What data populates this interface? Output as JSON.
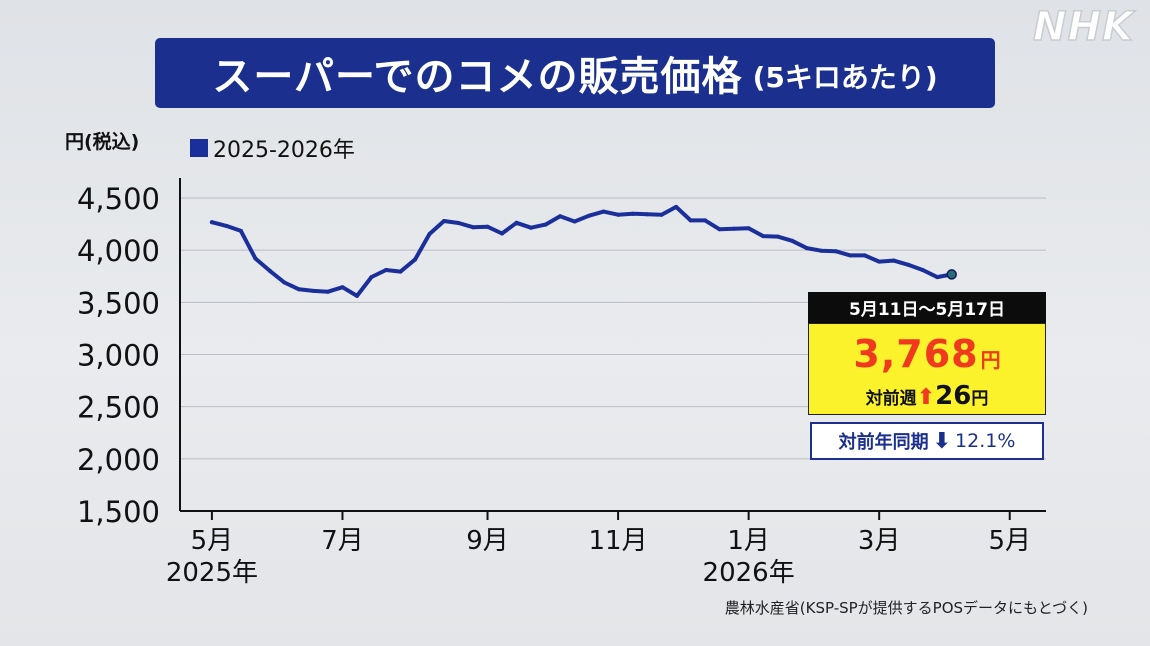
{
  "logo": "NHK",
  "title": {
    "main": "スーパーでのコメの販売価格",
    "sub": "(5キロあたり)"
  },
  "chart_data": {
    "type": "line",
    "yunit": "円(税込)",
    "legend": {
      "label": "2025-2026年",
      "position": "top-left"
    },
    "ylim": [
      1500,
      4500
    ],
    "yticks": [
      1500,
      2000,
      2500,
      3000,
      3500,
      4000,
      4500
    ],
    "ytick_labels": [
      "1,500",
      "2,000",
      "2,500",
      "3,000",
      "3,500",
      "4,000",
      "4,500"
    ],
    "grid": true,
    "x_ticks": [
      {
        "label": "5月",
        "sub": "2025年",
        "week": 0
      },
      {
        "label": "7月",
        "sub": "",
        "week": 9
      },
      {
        "label": "9月",
        "sub": "",
        "week": 19
      },
      {
        "label": "11月",
        "sub": "",
        "week": 28
      },
      {
        "label": "1月",
        "sub": "2026年",
        "week": 37
      },
      {
        "label": "3月",
        "sub": "",
        "week": 46
      },
      {
        "label": "5月",
        "sub": "",
        "week": 55
      }
    ],
    "xlim": [
      -2.2,
      57.5
    ],
    "series": [
      {
        "name": "2025-2026年",
        "color": "#1b2f9a",
        "values": [
          4268,
          4233,
          4185,
          3920,
          3801,
          3690,
          3625,
          3610,
          3602,
          3645,
          3562,
          3743,
          3810,
          3795,
          3910,
          4155,
          4280,
          4260,
          4220,
          4225,
          4160,
          4262,
          4215,
          4245,
          4325,
          4275,
          4330,
          4370,
          4340,
          4350,
          4345,
          4340,
          4415,
          4285,
          4285,
          4200,
          4205,
          4210,
          4135,
          4130,
          4090,
          4020,
          3995,
          3990,
          3950,
          3950,
          3890,
          3900,
          3860,
          3810,
          3742,
          3768
        ]
      }
    ]
  },
  "info_box": {
    "period": "5月11日～5月17日",
    "price": "3,768",
    "price_unit": "円",
    "week_label": "対前週",
    "week_arrow": "up-arrow",
    "week_change": "26",
    "week_unit": "円",
    "yoy_label": "対前年同期",
    "yoy_arrow": "down-arrow",
    "yoy_change": "12.1%"
  },
  "source": "農林水産省(KSP-SPが提供するPOSデータにもとづく)",
  "colors": {
    "title_bg": "#1b2f8f",
    "line": "#1b2f9a",
    "highlight_yellow": "#fbf22b",
    "price_red": "#f0391f"
  }
}
